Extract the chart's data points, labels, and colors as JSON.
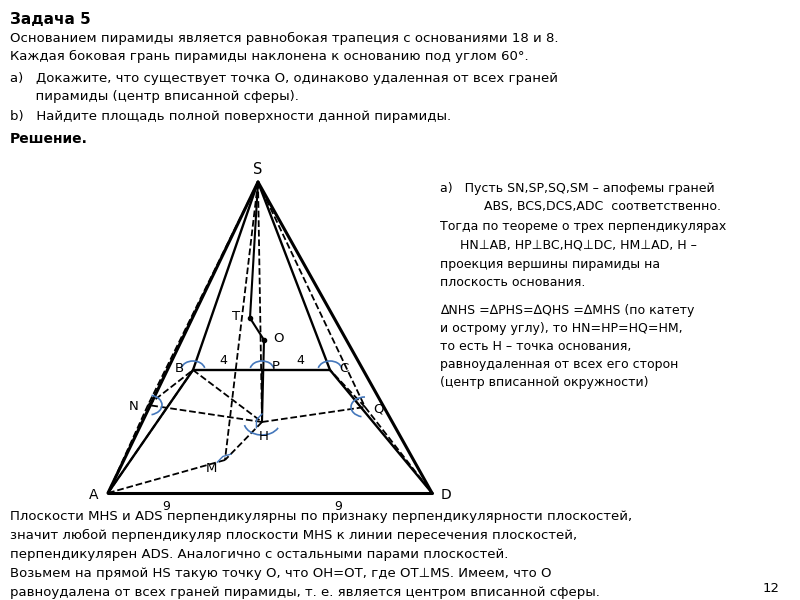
{
  "title": "Задача 5",
  "bg_color": "#ffffff",
  "text_color": "#000000",
  "problem_line1": "Основанием пирамиды является равнобокая трапеция с основаниями 18 и 8.",
  "problem_line2": "Каждая боковая грань пирамиды наклонена к основанию под углом 60°.",
  "part_a_line1": "a)   Докажите, что существует точка O, одинаково удаленная от всех граней",
  "part_a_line2": "      пирамиды (центр вписанной сферы).",
  "part_b_line1": "b)   Найдите площадь полной поверхности данной пирамиды.",
  "solution_label": "Решение.",
  "sol_a1": "a)   Пусть SN,SP,SQ,SM – апофемы граней",
  "sol_a2": "      ABS, BCS,DCS,ADC  соответственно.",
  "sol_a3": "Тогда по теореме о трех перпендикулярах",
  "sol_a4": "HN⊥AB, HP⊥BC,HQ⊥DC, HM⊥AD, H –",
  "sol_a5": "проекция вершины пирамиды на",
  "sol_a6": "плоскость основания.",
  "sol_b1": "∆NHS =∆PHS=∆QHS =∆MHS (по катету",
  "sol_b2": "и острому углу), то HN=HP=HQ=HM,",
  "sol_b3": "то есть H – точка основания,",
  "sol_b4": "равноудаленная от всех его сторон",
  "sol_b5": "(центр вписанной окружности)",
  "bottom1": "Плоскости MHS и ADS перпендикулярны по признаку перпендикулярности плоскостей,",
  "bottom2": "значит любой перпендикуляр плоскости MHS к линии пересечения плоскостей,",
  "bottom3": "перпендикулярен ADS. Аналогично с остальными парами плоскостей.",
  "bottom4": "Возьмем на прямой HS такую точку O, что OH=OT, где OT⊥MS. Имеем, что O",
  "bottom5": "равноудалена от всех граней пирамиды, т. е. является центром вписанной сферы.",
  "page_number": "12",
  "blue": "#4477bb",
  "black": "#000000"
}
